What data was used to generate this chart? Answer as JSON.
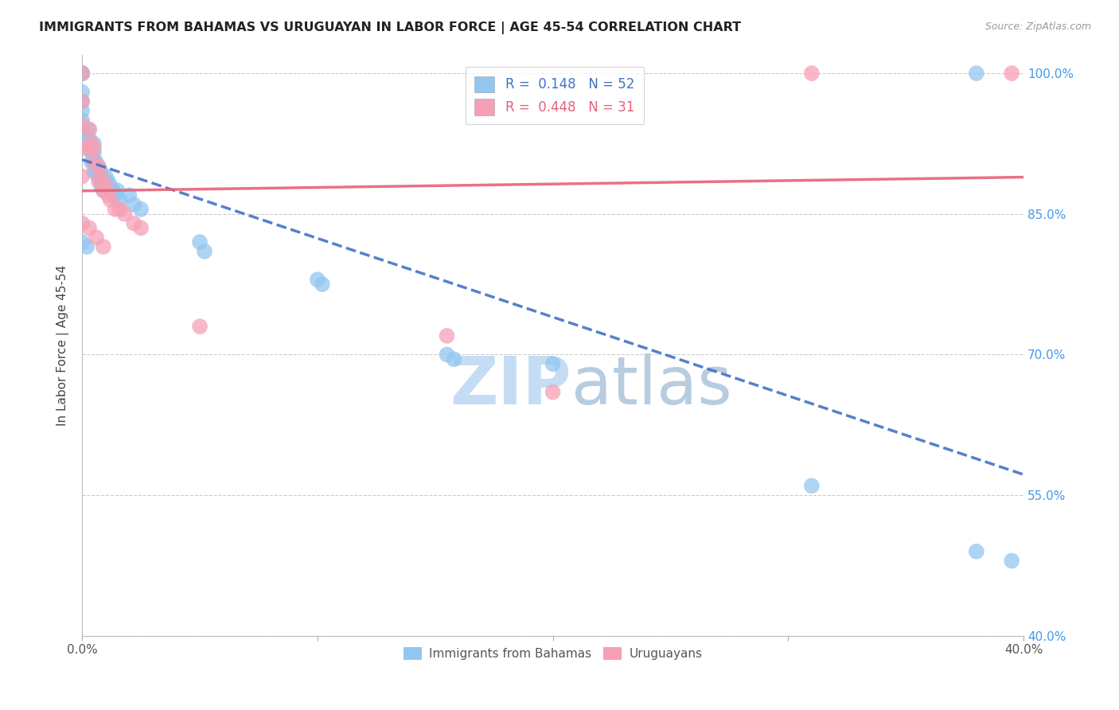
{
  "title": "IMMIGRANTS FROM BAHAMAS VS URUGUAYAN IN LABOR FORCE | AGE 45-54 CORRELATION CHART",
  "source": "Source: ZipAtlas.com",
  "ylabel": "In Labor Force | Age 45-54",
  "xmin": 0.0,
  "xmax": 0.4,
  "ymin": 0.4,
  "ymax": 1.02,
  "yticks": [
    0.4,
    0.55,
    0.7,
    0.85,
    1.0
  ],
  "ytick_labels": [
    "40.0%",
    "55.0%",
    "70.0%",
    "85.0%",
    "100.0%"
  ],
  "xtick_positions": [
    0.0,
    0.1,
    0.2,
    0.3,
    0.4
  ],
  "xtick_labels": [
    "0.0%",
    "",
    "",
    "",
    "40.0%"
  ],
  "r_bahamas": 0.148,
  "n_bahamas": 52,
  "r_uruguayan": 0.448,
  "n_uruguayan": 31,
  "blue_color": "#93C6F0",
  "pink_color": "#F5A0B5",
  "blue_line_color": "#4472C4",
  "pink_line_color": "#E8607A",
  "watermark_zip": "ZIP",
  "watermark_atlas": "atlas",
  "watermark_color": "#D8EEFF",
  "watermark_atlas_color": "#C8D8E8",
  "bahamas_x": [
    0.0,
    0.0,
    0.0,
    0.0,
    0.0,
    0.0,
    0.0,
    0.0,
    0.0,
    0.0,
    0.003,
    0.003,
    0.003,
    0.004,
    0.004,
    0.004,
    0.005,
    0.005,
    0.005,
    0.005,
    0.006,
    0.006,
    0.007,
    0.007,
    0.008,
    0.008,
    0.008,
    0.009,
    0.01,
    0.01,
    0.011,
    0.012,
    0.013,
    0.014,
    0.015,
    0.016,
    0.02,
    0.022,
    0.025,
    0.05,
    0.052,
    0.1,
    0.102,
    0.155,
    0.158,
    0.2,
    0.31,
    0.38,
    0.395,
    0.0,
    0.002,
    0.38
  ],
  "bahamas_y": [
    1.0,
    1.0,
    1.0,
    1.0,
    0.98,
    0.97,
    0.96,
    0.95,
    0.94,
    0.93,
    0.94,
    0.93,
    0.92,
    0.925,
    0.915,
    0.905,
    0.925,
    0.915,
    0.905,
    0.895,
    0.905,
    0.895,
    0.9,
    0.89,
    0.895,
    0.885,
    0.88,
    0.875,
    0.89,
    0.88,
    0.885,
    0.88,
    0.875,
    0.87,
    0.875,
    0.865,
    0.87,
    0.86,
    0.855,
    0.82,
    0.81,
    0.78,
    0.775,
    0.7,
    0.695,
    0.69,
    0.56,
    0.49,
    0.48,
    0.82,
    0.815,
    1.0
  ],
  "uruguayan_x": [
    0.0,
    0.0,
    0.0,
    0.0,
    0.0,
    0.003,
    0.003,
    0.004,
    0.005,
    0.005,
    0.007,
    0.007,
    0.008,
    0.009,
    0.01,
    0.011,
    0.012,
    0.014,
    0.016,
    0.018,
    0.022,
    0.025,
    0.05,
    0.155,
    0.2,
    0.31,
    0.0,
    0.003,
    0.006,
    0.009,
    0.395
  ],
  "uruguayan_y": [
    1.0,
    0.97,
    0.945,
    0.92,
    0.89,
    0.94,
    0.92,
    0.925,
    0.92,
    0.905,
    0.9,
    0.885,
    0.89,
    0.875,
    0.88,
    0.87,
    0.865,
    0.855,
    0.855,
    0.85,
    0.84,
    0.835,
    0.73,
    0.72,
    0.66,
    1.0,
    0.84,
    0.835,
    0.825,
    0.815,
    1.0
  ]
}
